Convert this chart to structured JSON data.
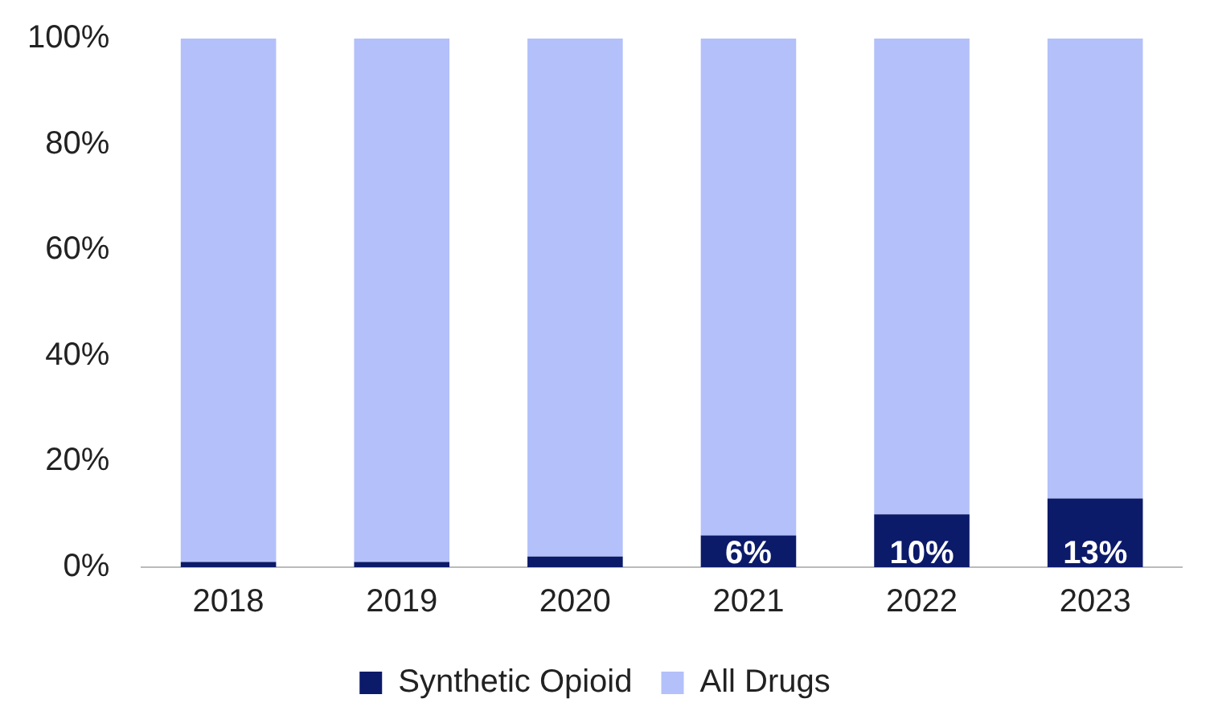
{
  "chart_data": {
    "type": "bar",
    "stacked": true,
    "categories": [
      "2018",
      "2019",
      "2020",
      "2021",
      "2022",
      "2023"
    ],
    "series": [
      {
        "name": "Synthetic Opioid",
        "color": "#0c1a6a",
        "values": [
          1,
          1,
          2,
          6,
          10,
          13
        ],
        "value_labels": [
          null,
          null,
          null,
          "6%",
          "10%",
          "13%"
        ]
      },
      {
        "name": "All Drugs",
        "color": "#b3c0f9",
        "values": [
          99,
          99,
          98,
          94,
          90,
          87
        ]
      }
    ],
    "ylim": [
      0,
      100
    ],
    "yticks": [
      {
        "value": 0,
        "label": "0%"
      },
      {
        "value": 20,
        "label": "20%"
      },
      {
        "value": 40,
        "label": "40%"
      },
      {
        "value": 60,
        "label": "60%"
      },
      {
        "value": 80,
        "label": "80%"
      },
      {
        "value": 100,
        "label": "100%"
      }
    ],
    "grid": false,
    "legend": "bottom"
  }
}
